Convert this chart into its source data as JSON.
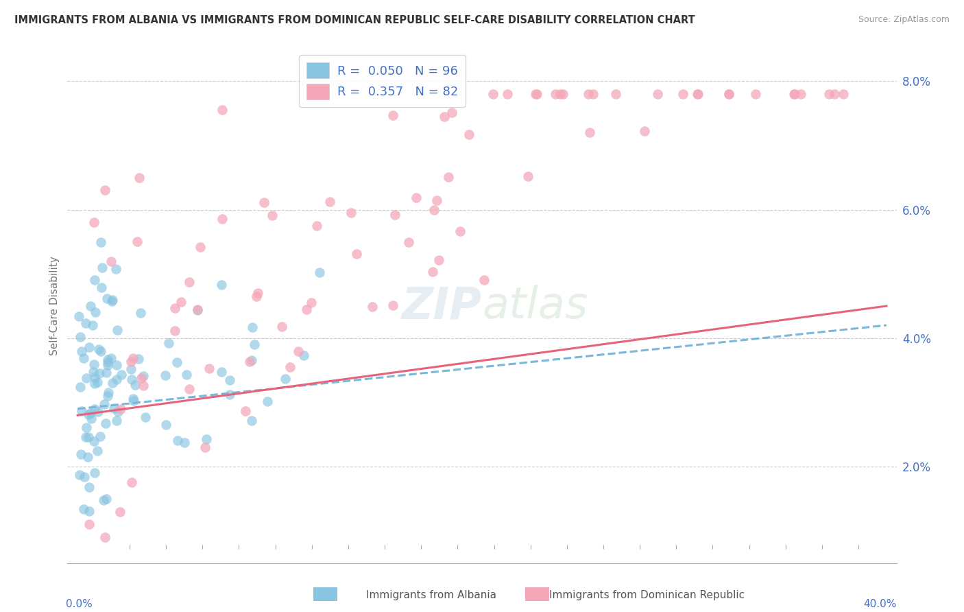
{
  "title": "IMMIGRANTS FROM ALBANIA VS IMMIGRANTS FROM DOMINICAN REPUBLIC SELF-CARE DISABILITY CORRELATION CHART",
  "source": "Source: ZipAtlas.com",
  "ylabel": "Self-Care Disability",
  "legend_label1": "Immigrants from Albania",
  "legend_label2": "Immigrants from Dominican Republic",
  "R1": 0.05,
  "N1": 96,
  "R2": 0.357,
  "N2": 82,
  "color1": "#89c4e1",
  "color2": "#f4a7b9",
  "trendline1_color": "#7ab8d9",
  "trendline2_color": "#e8637a",
  "xlim": [
    -0.005,
    0.405
  ],
  "ylim": [
    0.005,
    0.085
  ],
  "right_yticks": [
    0.02,
    0.04,
    0.06,
    0.08
  ],
  "right_ytick_labels": [
    "2.0%",
    "4.0%",
    "6.0%",
    "8.0%"
  ],
  "grid_yticks": [
    0.02,
    0.04,
    0.06,
    0.08
  ],
  "watermark_text": "ZIPatlas",
  "background_color": "#ffffff",
  "grid_color": "#cccccc",
  "axis_color": "#aaaaaa",
  "text_color": "#4472c4",
  "title_color": "#333333"
}
